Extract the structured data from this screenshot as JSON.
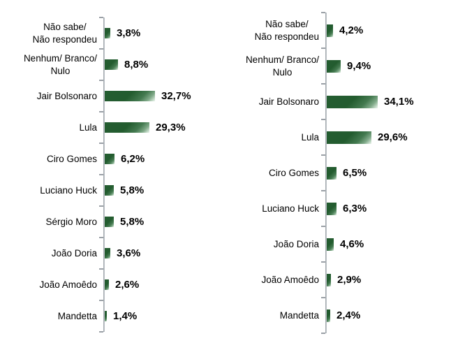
{
  "page": {
    "background_color": "#ffffff",
    "text_color": "#000000"
  },
  "chart_data": [
    {
      "type": "bar",
      "orientation": "horizontal",
      "title": "",
      "xlabel": "",
      "ylabel": "",
      "xlim": [
        0,
        40
      ],
      "grid": false,
      "legend": "none",
      "bar_color": "#235c2f",
      "bar_highlight_color": "#cfe2d2",
      "axis_color": "#9aa0a6",
      "categories": [
        "Não sabe/\nNão respondeu",
        "Nenhum/ Branco/\nNulo",
        "Jair Bolsonaro",
        "Lula",
        "Ciro Gomes",
        "Luciano Huck",
        "Sérgio Moro",
        "João Doria",
        "João Amoêdo",
        "Mandetta"
      ],
      "values": [
        3.8,
        8.8,
        32.7,
        29.3,
        6.2,
        5.8,
        5.8,
        3.6,
        2.6,
        1.4
      ],
      "value_labels": [
        "3,8%",
        "8,8%",
        "32,7%",
        "29,3%",
        "6,2%",
        "5,8%",
        "5,8%",
        "3,6%",
        "2,6%",
        "1,4%"
      ]
    },
    {
      "type": "bar",
      "orientation": "horizontal",
      "title": "",
      "xlabel": "",
      "ylabel": "",
      "xlim": [
        0,
        40
      ],
      "grid": false,
      "legend": "none",
      "bar_color": "#235c2f",
      "bar_highlight_color": "#cfe2d2",
      "axis_color": "#9aa0a6",
      "categories": [
        "Não sabe/\nNão respondeu",
        "Nenhum/ Branco/\nNulo",
        "Jair Bolsonaro",
        "Lula",
        "Ciro Gomes",
        "Luciano Huck",
        "João Doria",
        "João Amoêdo",
        "Mandetta"
      ],
      "values": [
        4.2,
        9.4,
        34.1,
        29.6,
        6.5,
        6.3,
        4.6,
        2.9,
        2.4
      ],
      "value_labels": [
        "4,2%",
        "9,4%",
        "34,1%",
        "29,6%",
        "6,5%",
        "6,3%",
        "4,6%",
        "2,9%",
        "2,4%"
      ]
    }
  ]
}
